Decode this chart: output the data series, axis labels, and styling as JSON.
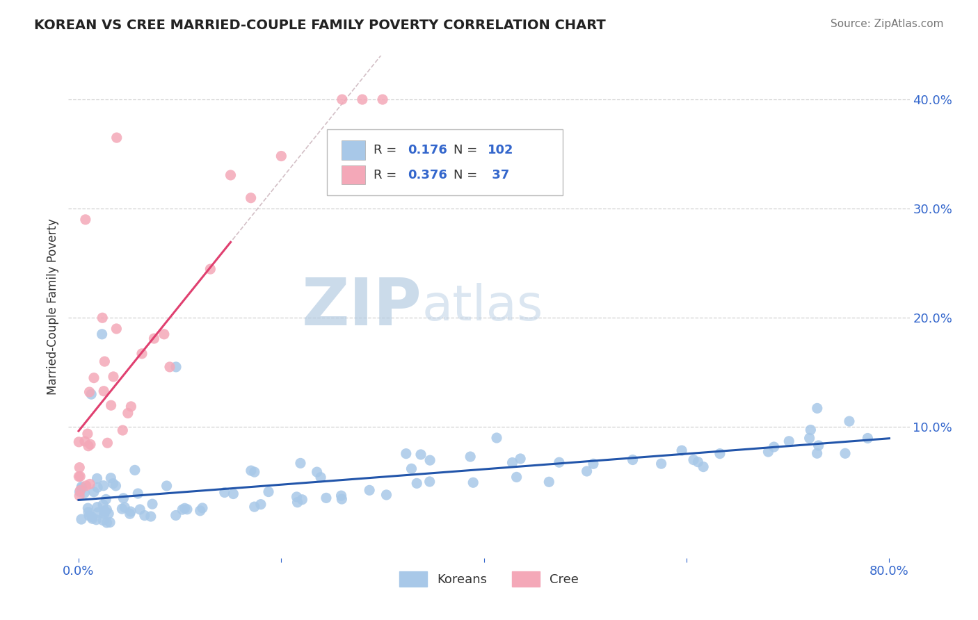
{
  "title": "KOREAN VS CREE MARRIED-COUPLE FAMILY POVERTY CORRELATION CHART",
  "source_text": "Source: ZipAtlas.com",
  "ylabel": "Married-Couple Family Poverty",
  "xlim": [
    -0.01,
    0.82
  ],
  "ylim": [
    -0.02,
    0.44
  ],
  "xtick_positions": [
    0.0,
    0.8
  ],
  "xticklabels": [
    "0.0%",
    "80.0%"
  ],
  "yticks_right": [
    0.0,
    0.1,
    0.2,
    0.3,
    0.4
  ],
  "yticklabels_right": [
    "",
    "10.0%",
    "20.0%",
    "30.0%",
    "40.0%"
  ],
  "korean_color": "#a8c8e8",
  "cree_color": "#f4a8b8",
  "korean_line_color": "#2255aa",
  "cree_line_color": "#e04070",
  "cree_dash_color": "#d0a0b0",
  "korean_R": 0.176,
  "korean_N": 102,
  "cree_R": 0.376,
  "cree_N": 37,
  "legend_korean": "Koreans",
  "legend_cree": "Cree",
  "watermark_zip": "ZIP",
  "watermark_atlas": "atlas",
  "background_color": "#ffffff",
  "grid_color": "#cccccc",
  "dot_size": 120
}
